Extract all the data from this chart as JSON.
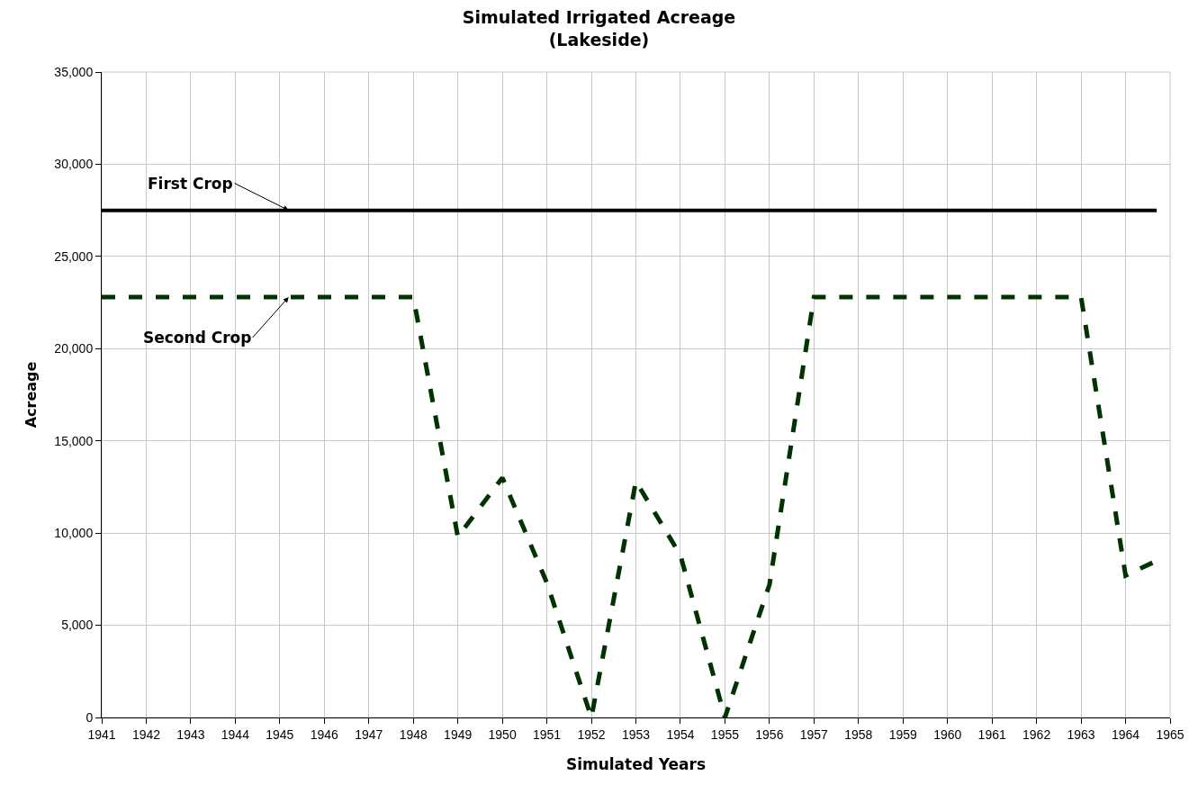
{
  "chart_data": {
    "type": "line",
    "title": "Simulated Irrigated Acreage\n(Lakeside)",
    "xlabel": "Simulated Years",
    "ylabel": "Acreage",
    "series": [
      {
        "name": "First Crop",
        "color": "#000000",
        "line_style": "solid",
        "x": [
          1941,
          1964.7
        ],
        "values": [
          27500,
          27500
        ]
      },
      {
        "name": "Second Crop",
        "color": "#003300",
        "line_style": "dashed",
        "x": [
          1941,
          1942,
          1943,
          1944,
          1945,
          1946,
          1947,
          1948,
          1949,
          1950,
          1951,
          1952,
          1953,
          1954,
          1955,
          1956,
          1957,
          1958,
          1959,
          1960,
          1961,
          1962,
          1963,
          1964,
          1964.7
        ],
        "values": [
          22800,
          22800,
          22800,
          22800,
          22800,
          22800,
          22800,
          22800,
          9800,
          13000,
          7300,
          0,
          12800,
          8800,
          0,
          7200,
          22800,
          22800,
          22800,
          22800,
          22800,
          22800,
          22800,
          7700,
          8500
        ]
      }
    ],
    "xlim": [
      1941,
      1965
    ],
    "xticks": [
      1941,
      1942,
      1943,
      1944,
      1945,
      1946,
      1947,
      1948,
      1949,
      1950,
      1951,
      1952,
      1953,
      1954,
      1955,
      1956,
      1957,
      1958,
      1959,
      1960,
      1961,
      1962,
      1963,
      1964,
      1965
    ],
    "ylim": [
      0,
      35000
    ],
    "yticks": [
      {
        "value": 0,
        "label": "0"
      },
      {
        "value": 5000,
        "label": "5,000"
      },
      {
        "value": 10000,
        "label": "10,000"
      },
      {
        "value": 15000,
        "label": "15,000"
      },
      {
        "value": 20000,
        "label": "20,000"
      },
      {
        "value": 25000,
        "label": "25,000"
      },
      {
        "value": 30000,
        "label": "30,000"
      },
      {
        "value": 35000,
        "label": "35,000"
      }
    ],
    "grid": true,
    "legend": false,
    "marker": "none"
  }
}
